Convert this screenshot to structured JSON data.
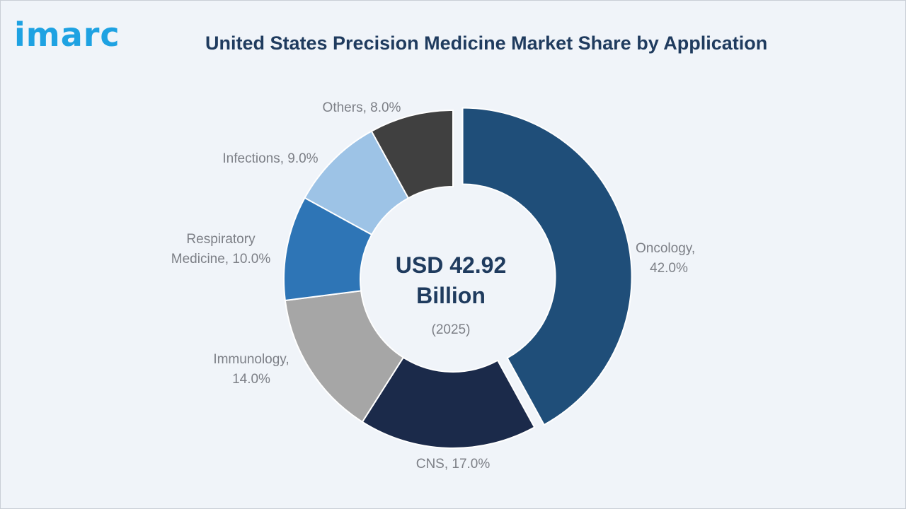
{
  "brand": {
    "logo_text": "imarc"
  },
  "chart_data": {
    "type": "pie",
    "title": "United States Precision Medicine Market Share by Application",
    "center_label": {
      "line1": "USD 42.92",
      "line2": "Billion",
      "line3": "(2025)"
    },
    "categories": [
      "Oncology",
      "CNS",
      "Immunology",
      "Respiratory Medicine",
      "Infections",
      "Others"
    ],
    "values": [
      42.0,
      17.0,
      14.0,
      10.0,
      9.0,
      8.0
    ],
    "value_labels": [
      "42.0%",
      "17.0%",
      "14.0%",
      "10.0%",
      "9.0%",
      "8.0%"
    ],
    "colors": [
      "#1f4e79",
      "#1b2a4a",
      "#a6a6a6",
      "#2e75b6",
      "#9dc3e6",
      "#404040"
    ],
    "exploded": [
      "Oncology"
    ],
    "donut": true
  }
}
